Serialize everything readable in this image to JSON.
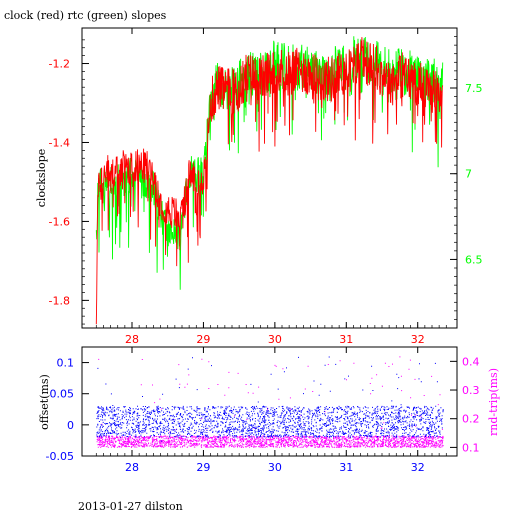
{
  "chart_data": [
    {
      "type": "line",
      "title": "clock (red) rtc (green) slopes",
      "ylabel": "clockslope",
      "x_ticks": [
        "28",
        "29",
        "30",
        "31",
        "32"
      ],
      "xlim": [
        27.3,
        32.55
      ],
      "ylim_left": [
        -1.87,
        -1.11
      ],
      "yticks_left": [
        "-1.2",
        "-1.4",
        "-1.6",
        "-1.8"
      ],
      "ylim_right": [
        6.1,
        7.85
      ],
      "yticks_right": [
        "7.5",
        "7",
        "6.5"
      ],
      "grid": false,
      "series": [
        {
          "color": "#ff0000",
          "axis": "left",
          "x": [
            27.5,
            27.52,
            27.55,
            27.6,
            27.7,
            27.8,
            27.9,
            28.0,
            28.1,
            28.2,
            28.3,
            28.4,
            28.5,
            28.6,
            28.7,
            28.8,
            28.9,
            29.0,
            29.05,
            29.1,
            29.2,
            29.3,
            29.5,
            29.6,
            29.8,
            30.0,
            30.2,
            30.4,
            30.6,
            30.8,
            31.0,
            31.1,
            31.2,
            31.4,
            31.6,
            31.8,
            32.0,
            32.2,
            32.35
          ],
          "y": [
            -1.84,
            -1.55,
            -1.49,
            -1.48,
            -1.47,
            -1.47,
            -1.46,
            -1.46,
            -1.46,
            -1.46,
            -1.48,
            -1.55,
            -1.57,
            -1.58,
            -1.59,
            -1.48,
            -1.49,
            -1.49,
            -1.42,
            -1.3,
            -1.26,
            -1.27,
            -1.27,
            -1.23,
            -1.24,
            -1.22,
            -1.22,
            -1.22,
            -1.24,
            -1.24,
            -1.22,
            -1.21,
            -1.19,
            -1.21,
            -1.24,
            -1.23,
            -1.25,
            -1.27,
            -1.28
          ]
        },
        {
          "color": "#00ff00",
          "axis": "left",
          "x": [
            27.5,
            27.52,
            27.55,
            27.6,
            27.7,
            27.8,
            27.9,
            28.0,
            28.1,
            28.2,
            28.3,
            28.4,
            28.5,
            28.6,
            28.7,
            28.8,
            28.9,
            29.0,
            29.05,
            29.1,
            29.2,
            29.3,
            29.5,
            29.6,
            29.8,
            30.0,
            30.2,
            30.4,
            30.6,
            30.8,
            31.0,
            31.1,
            31.2,
            31.4,
            31.6,
            31.8,
            32.0,
            32.2,
            32.35
          ],
          "y": [
            -1.65,
            -1.55,
            -1.5,
            -1.52,
            -1.5,
            -1.5,
            -1.49,
            -1.48,
            -1.49,
            -1.5,
            -1.52,
            -1.58,
            -1.62,
            -1.63,
            -1.62,
            -1.47,
            -1.48,
            -1.48,
            -1.4,
            -1.28,
            -1.25,
            -1.26,
            -1.25,
            -1.22,
            -1.23,
            -1.2,
            -1.21,
            -1.21,
            -1.22,
            -1.22,
            -1.2,
            -1.19,
            -1.18,
            -1.2,
            -1.22,
            -1.22,
            -1.23,
            -1.24,
            -1.24
          ]
        }
      ]
    },
    {
      "type": "scatter",
      "xlabel": "",
      "ylabel": "offset(ms)",
      "ylabel_right": "rnd-trip(ms)",
      "x_ticks": [
        "28",
        "29",
        "30",
        "31",
        "32"
      ],
      "xlim": [
        27.3,
        32.55
      ],
      "ylim_left": [
        -0.05,
        0.125
      ],
      "yticks_left": [
        "0.1",
        "0.05",
        "0",
        "-0.05"
      ],
      "ylim_right": [
        0.07,
        0.45
      ],
      "yticks_right": [
        "0.4",
        "0.3",
        "0.2",
        "0.1"
      ],
      "series": [
        {
          "color": "#0000ff",
          "axis": "left",
          "x_range": [
            27.5,
            32.35
          ],
          "y_band": [
            -0.02,
            0.03
          ]
        },
        {
          "color": "#ff00ff",
          "axis": "right",
          "x_range": [
            27.5,
            32.35
          ],
          "y_band": [
            0.1,
            0.14
          ]
        }
      ]
    }
  ],
  "footer": "2013-01-27 dilston",
  "colors": {
    "left_axis_top": "#ff0000",
    "right_axis_top": "#00ff00",
    "left_axis_bottom": "#0000ff",
    "right_axis_bottom": "#ff00ff"
  }
}
